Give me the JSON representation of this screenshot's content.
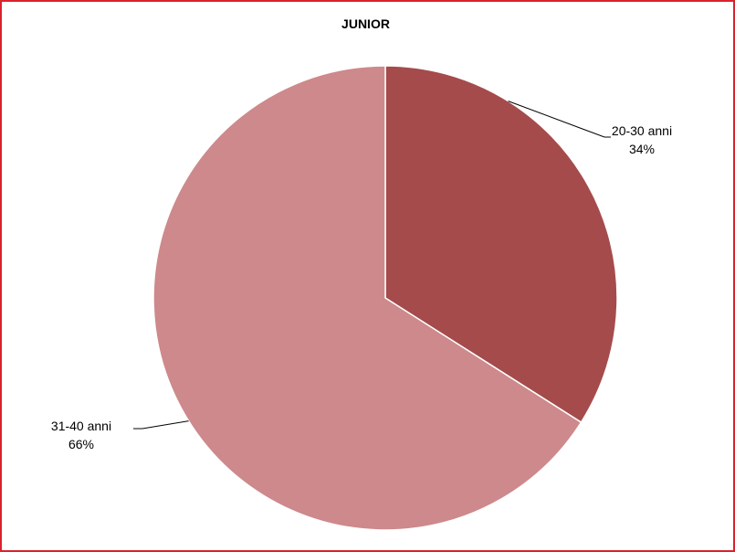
{
  "chart_data": {
    "type": "pie",
    "title": "JUNIOR",
    "slices": [
      {
        "label": "20-30 anni",
        "value": 34,
        "pct_label": "34%",
        "color": "#a54b4b"
      },
      {
        "label": "31-40 anni",
        "value": 66,
        "pct_label": "66%",
        "color": "#cd898b"
      }
    ],
    "start_angle_deg": 0,
    "direction": "clockwise",
    "legend": "none",
    "data_labels": "outside-with-leader-lines"
  },
  "colors": {
    "border": "#d9232d",
    "background": "#ffffff"
  }
}
